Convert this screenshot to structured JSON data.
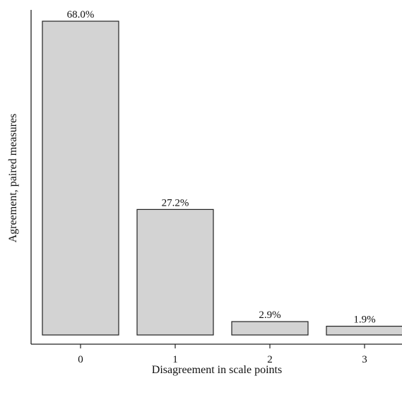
{
  "chart_data": {
    "type": "bar",
    "categories": [
      "0",
      "1",
      "2",
      "3"
    ],
    "values": [
      68.0,
      27.2,
      2.9,
      1.9
    ],
    "data_labels": [
      "68.0%",
      "27.2%",
      "2.9%",
      "1.9%"
    ],
    "title": "",
    "xlabel": "Disagreement in scale points",
    "ylabel": "Agreement, paired measures",
    "ylim": [
      0,
      68.0
    ],
    "y_ticks_shown": false,
    "grid": false,
    "legend": "none",
    "colors": {
      "bar_fill": "#d3d3d3",
      "bar_stroke": "#222222",
      "axis": "#222222"
    }
  }
}
